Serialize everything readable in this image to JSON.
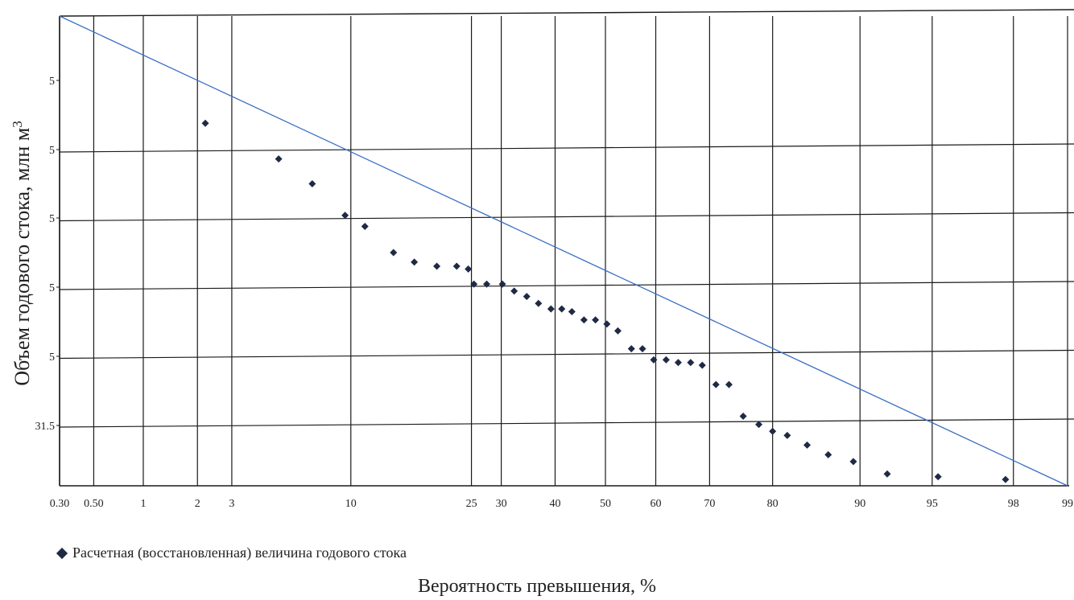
{
  "chart_data": {
    "type": "scatter",
    "xlabel": "Вероятность превышения, %",
    "ylabel": "Объем годового стока, млн м",
    "ylabel_sup": "3",
    "x_scale": "probability",
    "xlim": [
      0.3,
      99
    ],
    "x_ticks": [
      "0.30",
      "0.50",
      "1",
      "2",
      "3",
      "10",
      "25",
      "30",
      "40",
      "50",
      "60",
      "70",
      "80",
      "90",
      "95",
      "98",
      "99"
    ],
    "y_ticks": [
      "5",
      "5",
      "5",
      "5",
      "5",
      "31.5"
    ],
    "grid": true,
    "legend_position": "bottom-left",
    "colors": {
      "points": "#1f2a44",
      "line": "#3a6fc4",
      "grid": "#1a1a1a"
    },
    "series": [
      {
        "name": "Расчетная (восстановленная) величина годового стока",
        "x": [
          2.2,
          5.0,
          7.0,
          9.5,
          11.3,
          14.3,
          16.8,
          19.8,
          22.7,
          24.5,
          25.4,
          27.5,
          30.2,
          32.3,
          34.6,
          36.8,
          39.2,
          41.3,
          43.3,
          45.7,
          48.0,
          50.3,
          52.5,
          55.2,
          57.4,
          59.6,
          62.0,
          64.3,
          66.6,
          68.7,
          71.1,
          73.3,
          75.6,
          78.0,
          80.0,
          82.0,
          84.5,
          86.9,
          89.4,
          92.2,
          95.3,
          97.8
        ],
        "y": [
          33.68,
          33.42,
          33.24,
          33.01,
          32.93,
          32.74,
          32.67,
          32.64,
          32.64,
          32.62,
          32.51,
          32.51,
          32.51,
          32.46,
          32.42,
          32.37,
          32.33,
          32.33,
          32.31,
          32.25,
          32.25,
          32.22,
          32.17,
          32.04,
          32.04,
          31.96,
          31.96,
          31.94,
          31.94,
          31.92,
          31.78,
          31.78,
          31.55,
          31.49,
          31.44,
          31.41,
          31.34,
          31.27,
          31.22,
          31.13,
          31.11,
          31.09
        ]
      }
    ]
  },
  "legend": {
    "label": "Расчетная (восстановленная) величина годового стока"
  }
}
